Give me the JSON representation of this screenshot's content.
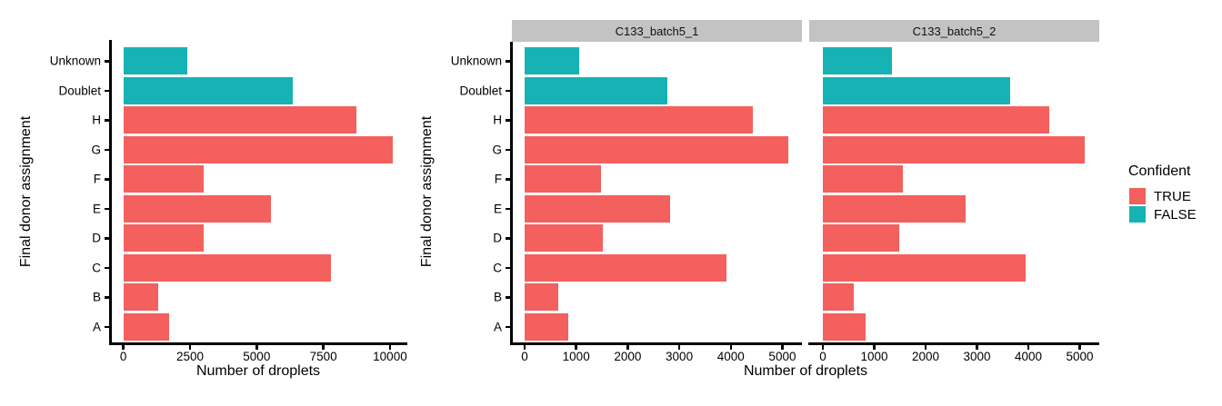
{
  "figure": {
    "background": "#FFFFFF",
    "strip_bg": "#C3C3C3",
    "colors": {
      "TRUE": "#F3605D",
      "FALSE": "#17B3B4"
    },
    "legend": {
      "title": "Confident",
      "items": [
        {
          "label": "TRUE",
          "color": "#F3605D"
        },
        {
          "label": "FALSE",
          "color": "#17B3B4"
        }
      ]
    }
  },
  "chart_data": [
    {
      "type": "bar",
      "orientation": "horizontal",
      "title": "",
      "xlabel": "Number of droplets",
      "ylabel": "Final donor assignment",
      "categories": [
        "Unknown",
        "Doublet",
        "H",
        "G",
        "F",
        "E",
        "D",
        "C",
        "B",
        "A"
      ],
      "values": [
        2400,
        6350,
        8750,
        10100,
        3000,
        5550,
        3000,
        7800,
        1300,
        1700
      ],
      "confident": [
        false,
        false,
        true,
        true,
        true,
        true,
        true,
        true,
        true,
        true
      ],
      "xticks": [
        0,
        2500,
        5000,
        7500,
        10000
      ],
      "xlim": [
        0,
        10650
      ],
      "grid": false,
      "legend_position": "none"
    },
    {
      "type": "bar",
      "facet": "C133_batch5_1",
      "orientation": "horizontal",
      "xlabel": "Number of droplets",
      "ylabel": "Final donor assignment",
      "categories": [
        "Unknown",
        "Doublet",
        "H",
        "G",
        "F",
        "E",
        "D",
        "C",
        "B",
        "A"
      ],
      "values": [
        1050,
        2770,
        4430,
        5120,
        1480,
        2820,
        1520,
        3910,
        660,
        850
      ],
      "confident": [
        false,
        false,
        true,
        true,
        true,
        true,
        true,
        true,
        true,
        true
      ],
      "xticks": [
        0,
        1000,
        2000,
        3000,
        4000,
        5000
      ],
      "xlim": [
        0,
        5380
      ],
      "grid": false,
      "legend_position": "right"
    },
    {
      "type": "bar",
      "facet": "C133_batch5_2",
      "orientation": "horizontal",
      "xlabel": "Number of droplets",
      "ylabel": "Final donor assignment",
      "categories": [
        "Unknown",
        "Doublet",
        "H",
        "G",
        "F",
        "E",
        "D",
        "C",
        "B",
        "A"
      ],
      "values": [
        1350,
        3650,
        4400,
        5100,
        1550,
        2770,
        1480,
        3940,
        600,
        830
      ],
      "confident": [
        false,
        false,
        true,
        true,
        true,
        true,
        true,
        true,
        true,
        true
      ],
      "xticks": [
        0,
        1000,
        2000,
        3000,
        4000,
        5000
      ],
      "xlim": [
        0,
        5380
      ],
      "grid": false,
      "legend_position": "right"
    }
  ]
}
